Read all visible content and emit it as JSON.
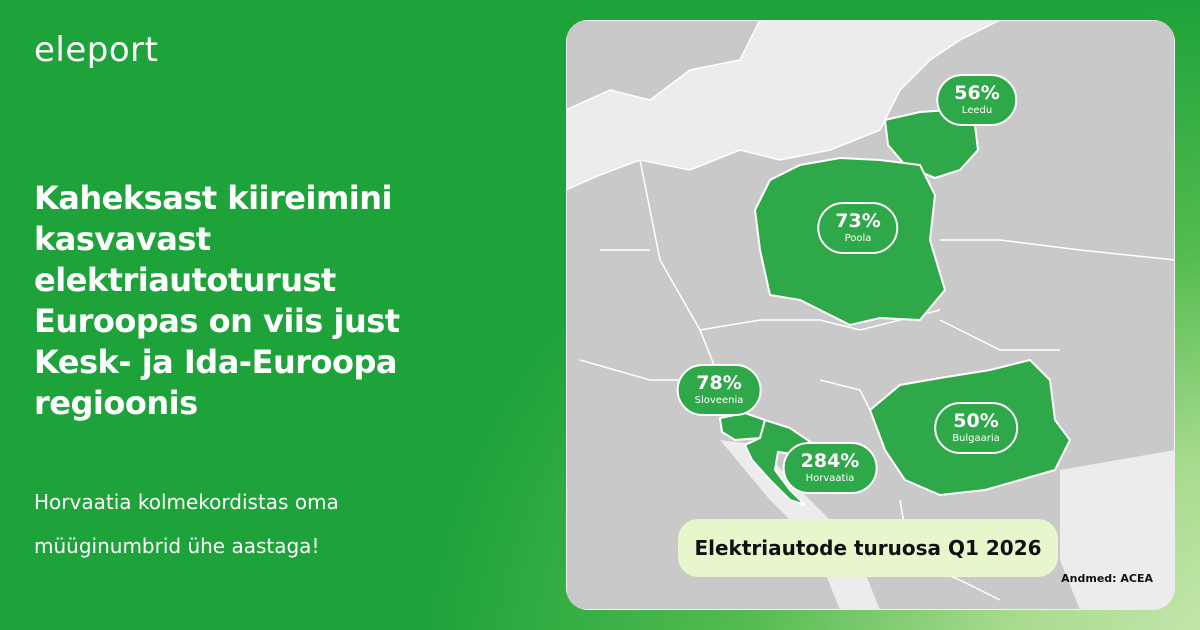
{
  "brand": "eleport",
  "headline": "Kaheksast kiireimini kasvavast elektriautoturust Euroopas on viis just Kesk- ja Ida-Euroopa regioonis",
  "subtitle": "Horvaatia kolmekordistas oma müüginumbrid ühe aastaga!",
  "map": {
    "title": "Elektriautode turuosa Q1 2026",
    "source": "Andmed: ACEA",
    "regions": [
      {
        "name": "Leedu",
        "label": "56%"
      },
      {
        "name": "Poola",
        "label": "73%"
      },
      {
        "name": "Sloveenia",
        "label": "78%"
      },
      {
        "name": "Horvaatia",
        "label": "284%"
      },
      {
        "name": "Bulgaaria",
        "label": "50%"
      }
    ]
  }
}
